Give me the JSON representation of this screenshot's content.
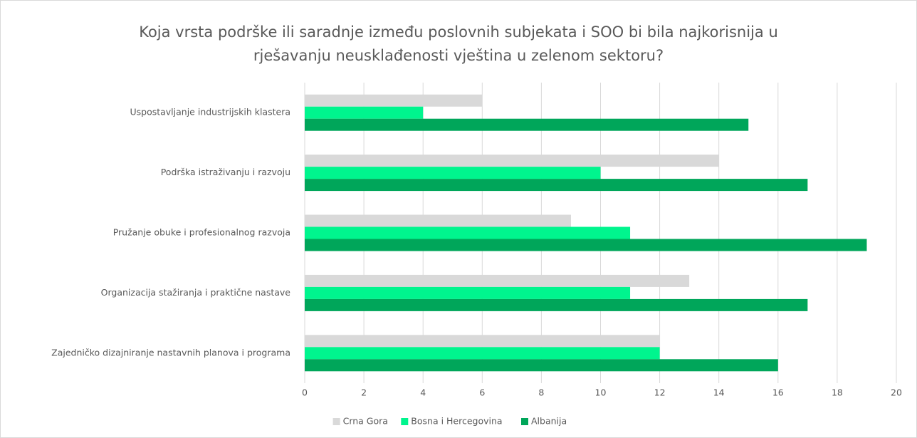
{
  "chart_data": {
    "type": "hbar",
    "title": "Koja vrsta podrške ili saradnje između poslovnih subjekata i SOO bi bila najkorisnija u rješavanju neusklađenosti vještina u zelenom sektoru?",
    "categories": [
      "Uspostavljanje industrijskih klastera",
      "Podrška istraživanju i razvoju",
      "Pružanje obuke i profesionalnog razvoja",
      "Organizacija stažiranja i praktične nastave",
      "Zajedničko dizajniranje nastavnih planova i programa"
    ],
    "series": [
      {
        "name": "Crna Gora",
        "color": "#d9d9d9",
        "values": [
          6,
          14,
          9,
          13,
          12
        ]
      },
      {
        "name": "Bosna i Hercegovina",
        "color": "#00f58e",
        "values": [
          4,
          10,
          11,
          11,
          12
        ]
      },
      {
        "name": "Albanija",
        "color": "#00a65a",
        "values": [
          15,
          17,
          19,
          17,
          16
        ]
      }
    ],
    "xlim": [
      0,
      20
    ],
    "xticks": [
      0,
      2,
      4,
      6,
      8,
      10,
      12,
      14,
      16,
      18,
      20
    ],
    "grid": true,
    "legend": "bottom"
  }
}
